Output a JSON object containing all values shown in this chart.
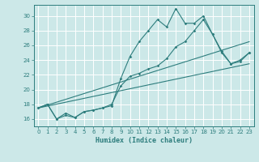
{
  "xlabel": "Humidex (Indice chaleur)",
  "bg_color": "#cce8e8",
  "grid_color": "#ffffff",
  "line_color": "#2d7d7d",
  "xlim": [
    -0.5,
    23.5
  ],
  "ylim": [
    15.0,
    31.5
  ],
  "yticks": [
    16,
    18,
    20,
    22,
    24,
    26,
    28,
    30
  ],
  "xticks": [
    0,
    1,
    2,
    3,
    4,
    5,
    6,
    7,
    8,
    9,
    10,
    11,
    12,
    13,
    14,
    15,
    16,
    17,
    18,
    19,
    20,
    21,
    22,
    23
  ],
  "line1_x": [
    0,
    1,
    2,
    3,
    4,
    5,
    6,
    7,
    8,
    9,
    10,
    11,
    12,
    13,
    14,
    15,
    16,
    17,
    18,
    19,
    20,
    21,
    22,
    23
  ],
  "line1_y": [
    17.5,
    18.0,
    16.0,
    16.5,
    16.2,
    17.0,
    17.2,
    17.5,
    17.8,
    21.5,
    24.5,
    26.5,
    28.0,
    29.5,
    28.5,
    31.0,
    29.0,
    29.0,
    30.0,
    27.5,
    25.0,
    23.5,
    24.0,
    25.0
  ],
  "line2_x": [
    0,
    1,
    2,
    3,
    4,
    5,
    6,
    7,
    8,
    9,
    10,
    11,
    12,
    13,
    14,
    15,
    16,
    17,
    18,
    19,
    20,
    21,
    22,
    23
  ],
  "line2_y": [
    17.5,
    18.0,
    16.0,
    16.8,
    16.2,
    17.0,
    17.2,
    17.5,
    18.0,
    20.5,
    21.8,
    22.2,
    22.8,
    23.2,
    24.2,
    25.8,
    26.5,
    28.0,
    29.5,
    27.5,
    25.2,
    23.5,
    23.8,
    25.0
  ],
  "line3_x": [
    0,
    23
  ],
  "line3_y": [
    17.5,
    26.5
  ],
  "line4_x": [
    0,
    23
  ],
  "line4_y": [
    17.5,
    23.5
  ]
}
